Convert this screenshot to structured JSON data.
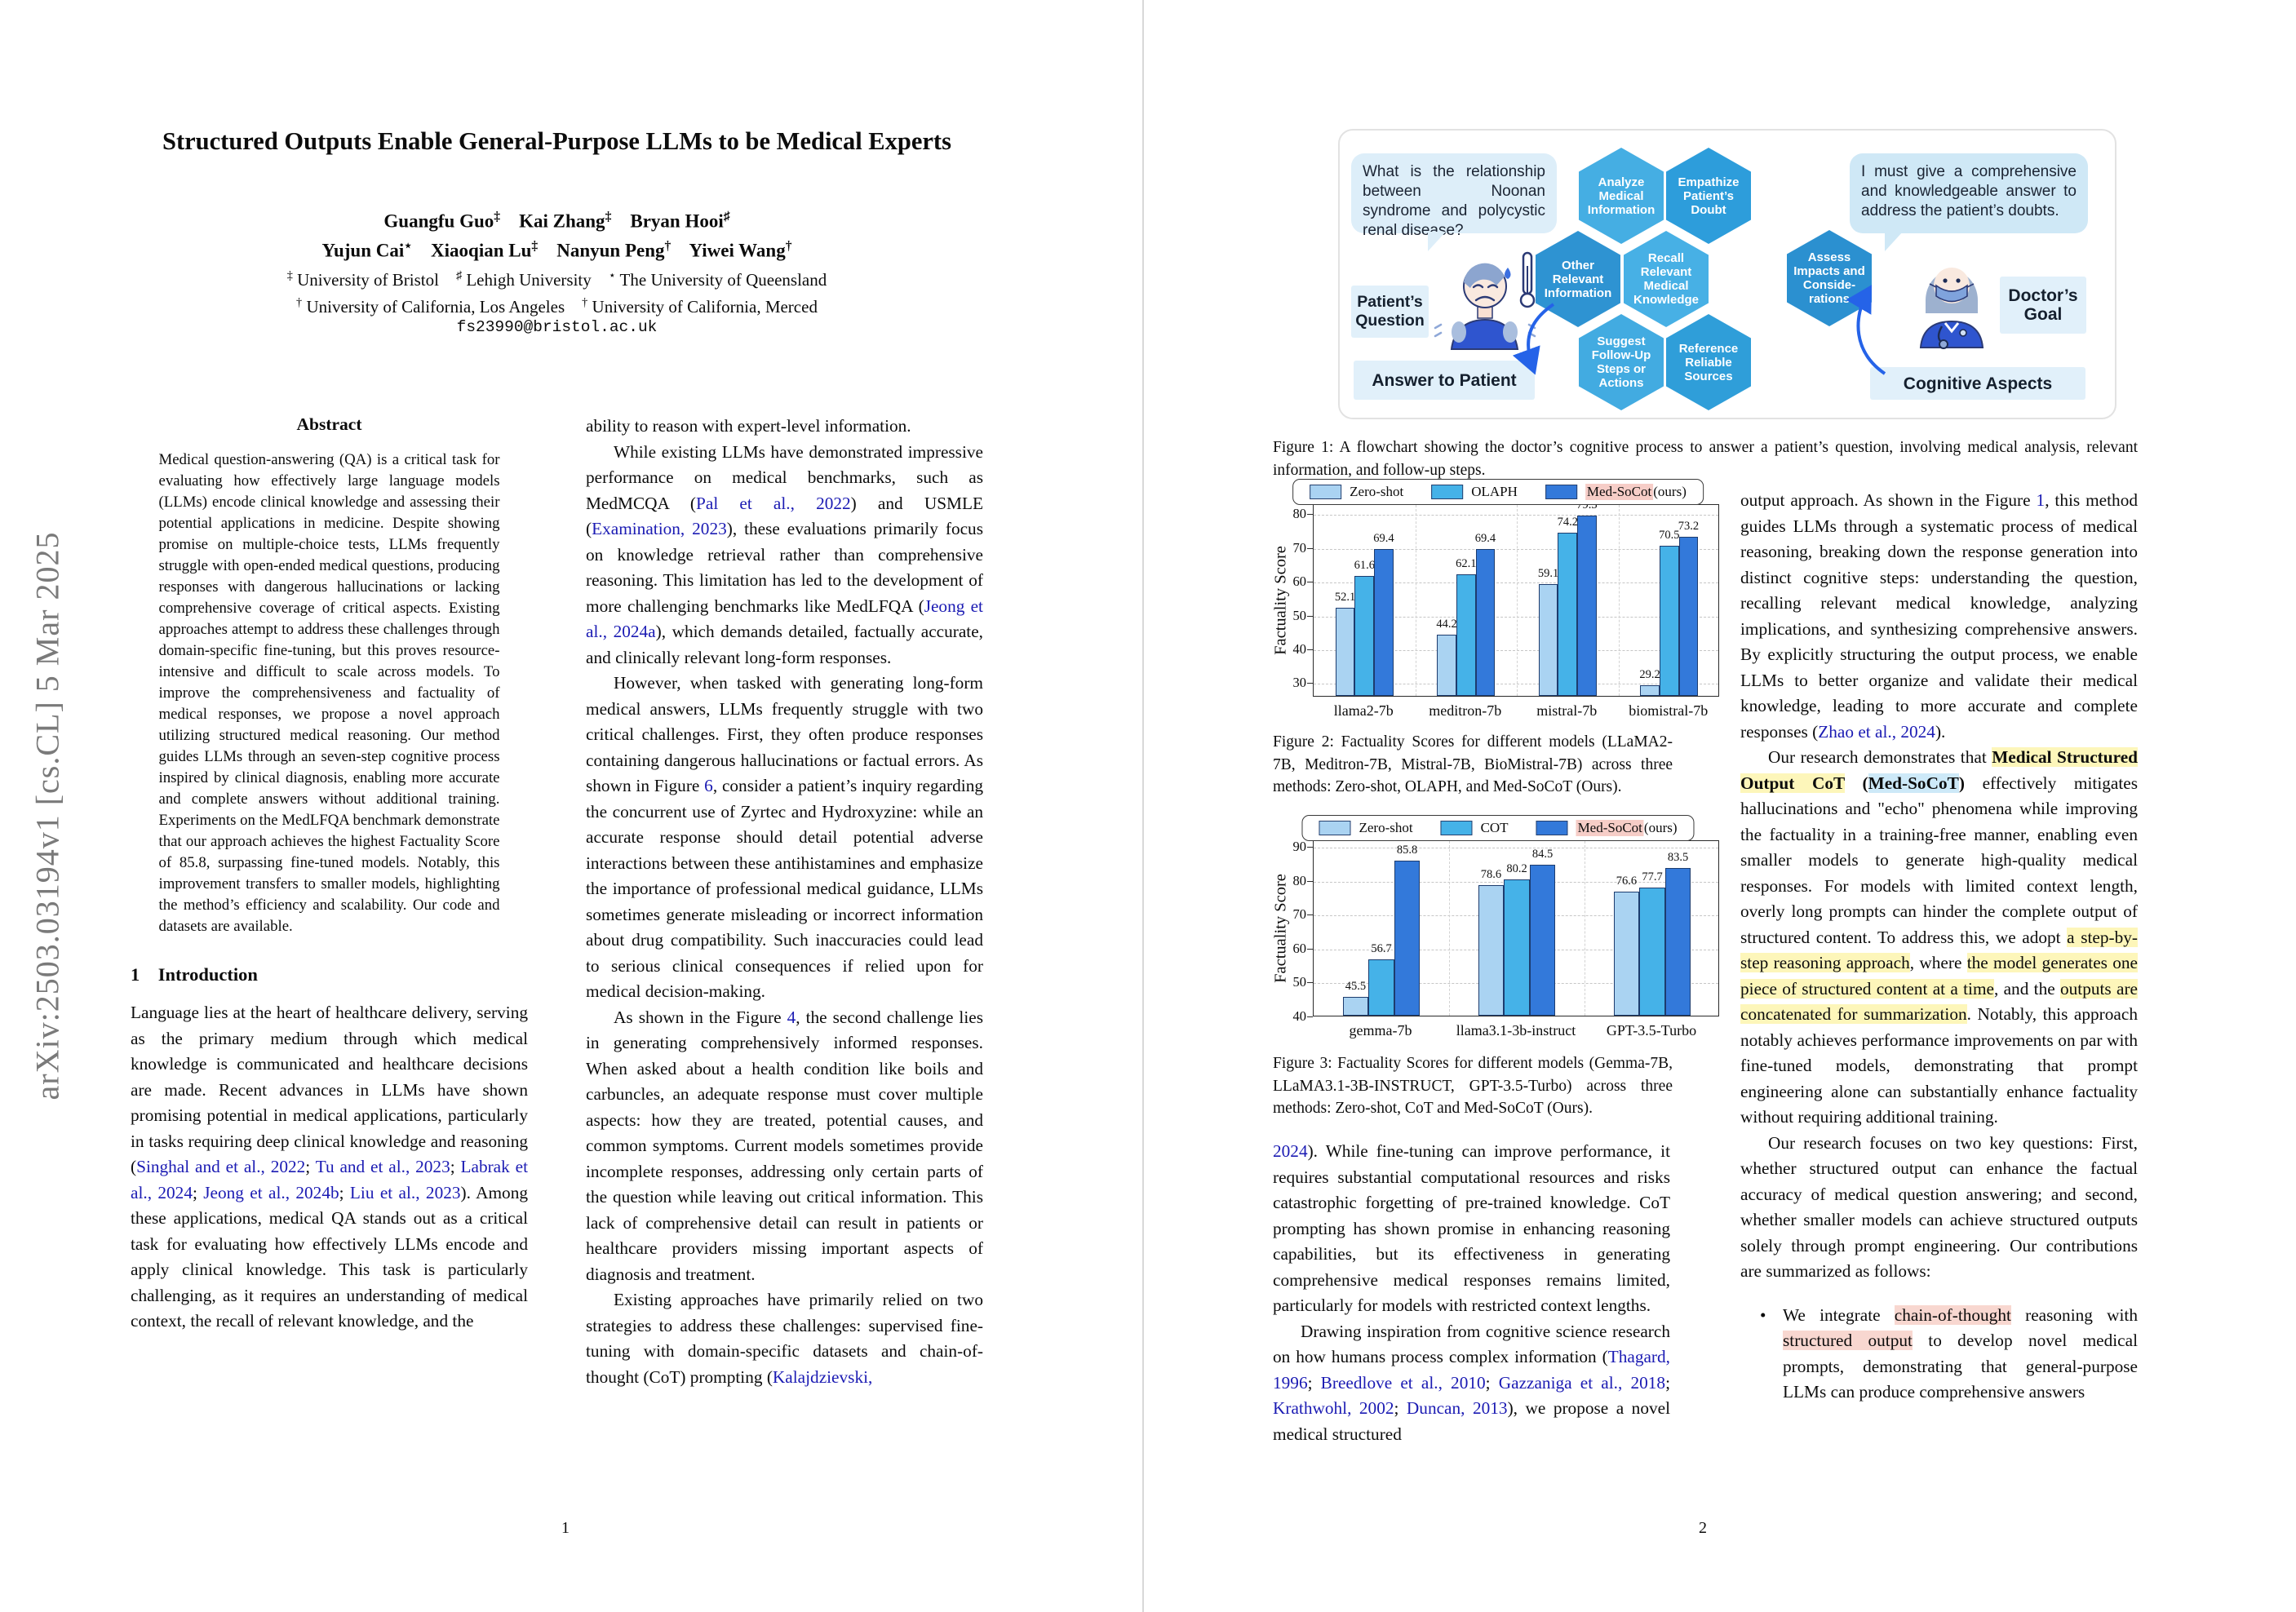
{
  "arxiv_watermark": "arXiv:2503.03194v1  [cs.CL]  5 Mar 2025",
  "paper": {
    "title": "Structured Outputs Enable General-Purpose LLMs to be Medical Experts",
    "authors_line1": [
      {
        "t": "Guangfu Guo"
      },
      {
        "t": "‡",
        "s": "sup"
      },
      {
        "t": "    "
      },
      {
        "t": "Kai Zhang"
      },
      {
        "t": "‡",
        "s": "sup"
      },
      {
        "t": "    "
      },
      {
        "t": "Bryan Hooi"
      },
      {
        "t": "♯",
        "s": "sup"
      }
    ],
    "authors_line2": [
      {
        "t": "Yujun Cai"
      },
      {
        "t": "⋆",
        "s": "sup"
      },
      {
        "t": "    "
      },
      {
        "t": "Xiaoqian Lu"
      },
      {
        "t": "‡",
        "s": "sup"
      },
      {
        "t": "    "
      },
      {
        "t": "Nanyun Peng"
      },
      {
        "t": "†",
        "s": "sup"
      },
      {
        "t": "    "
      },
      {
        "t": "Yiwei Wang"
      },
      {
        "t": "†",
        "s": "sup"
      }
    ],
    "affil_line1": [
      {
        "t": "‡",
        "s": "sup"
      },
      {
        "t": " University of Bristol    "
      },
      {
        "t": "♯",
        "s": "sup"
      },
      {
        "t": " Lehigh University    "
      },
      {
        "t": "⋆",
        "s": "sup"
      },
      {
        "t": " The University of Queensland"
      }
    ],
    "affil_line2": [
      {
        "t": "†",
        "s": "sup"
      },
      {
        "t": " University of California, Los Angeles    "
      },
      {
        "t": "†",
        "s": "sup"
      },
      {
        "t": " University of California, Merced"
      }
    ],
    "email": "fs23990@bristol.ac.uk"
  },
  "abstract": {
    "heading": "Abstract",
    "body": "Medical question-answering (QA) is a critical task for evaluating how effectively large language models (LLMs) encode clinical knowledge and assessing their potential applications in medicine. Despite showing promise on multiple-choice tests, LLMs frequently struggle with open-ended medical questions, producing responses with dangerous hallucinations or lacking comprehensive coverage of critical aspects. Existing approaches attempt to address these challenges through domain-specific fine-tuning, but this proves resource-intensive and difficult to scale across models. To improve the comprehensiveness and factuality of medical responses, we propose a novel approach utilizing structured medical reasoning. Our method guides LLMs through an seven-step cognitive process inspired by clinical diagnosis, enabling more accurate and complete answers without additional training. Experiments on the MedLFQA benchmark demonstrate that our approach achieves the highest Factuality Score of 85.8, surpassing fine-tuned models. Notably, this improvement transfers to smaller models, highlighting the method’s efficiency and scalability. Our code and datasets are available."
  },
  "intro": {
    "heading": "1 Introduction",
    "p1": [
      {
        "t": "Language lies at the heart of healthcare delivery, serving as the primary medium through which medical knowledge is communicated and healthcare decisions are made. Recent advances in LLMs have shown promising potential in medical applications, particularly in tasks requiring deep clinical knowledge and reasoning ("
      },
      {
        "t": "Singhal and et al., 2022",
        "s": "lk"
      },
      {
        "t": "; "
      },
      {
        "t": "Tu and et al., 2023",
        "s": "lk"
      },
      {
        "t": "; "
      },
      {
        "t": "Labrak et al., 2024",
        "s": "lk"
      },
      {
        "t": "; "
      },
      {
        "t": "Jeong et al., 2024b",
        "s": "lk"
      },
      {
        "t": "; "
      },
      {
        "t": "Liu et al., 2023",
        "s": "lk"
      },
      {
        "t": ").  Among these applications, medical QA stands out as a critical task for evaluating how effectively LLMs encode and apply clinical knowledge. This task is particularly challenging, as it requires an understanding of medical context, the recall of relevant knowledge, and the"
      }
    ]
  },
  "col2": {
    "p1": [
      {
        "t": "ability to reason with expert-level information."
      }
    ],
    "p2": [
      {
        "t": "While existing LLMs have demonstrated impressive performance on medical benchmarks, such as MedMCQA ("
      },
      {
        "t": "Pal et al., 2022",
        "s": "lk"
      },
      {
        "t": ") and USMLE ("
      },
      {
        "t": "Examination, 2023",
        "s": "lk"
      },
      {
        "t": "), these evaluations primarily focus on knowledge retrieval rather than comprehensive reasoning. This limitation has led to the development of more challenging benchmarks like MedLFQA ("
      },
      {
        "t": "Jeong et al., 2024a",
        "s": "lk"
      },
      {
        "t": "), which demands detailed, factually accurate, and clinically relevant long-form responses."
      }
    ],
    "p3": [
      {
        "t": "However, when tasked with generating long-form medical answers, LLMs frequently struggle with two critical challenges. First, they often produce responses containing dangerous hallucinations or factual errors. As shown in Figure "
      },
      {
        "t": "6",
        "s": "lk"
      },
      {
        "t": ", consider a patient’s inquiry regarding the concurrent use of Zyrtec and Hydroxyzine: while an accurate response should detail potential adverse interactions between these antihistamines and emphasize the importance of professional medical guidance, LLMs sometimes generate misleading or incorrect information about drug compatibility. Such inaccuracies could lead to serious clinical consequences if relied upon for medical decision-making."
      }
    ],
    "p4": [
      {
        "t": "As shown in the Figure "
      },
      {
        "t": "4",
        "s": "lk"
      },
      {
        "t": ", the second challenge lies in generating comprehensively informed responses. When asked about a health condition like boils and carbuncles, an adequate response must cover multiple aspects: how they are treated, potential causes, and common symptoms. Current models sometimes provide incomplete responses, addressing only certain parts of the question while leaving out critical information. This lack of comprehensive detail can result in patients or healthcare providers missing important aspects of diagnosis and treatment."
      }
    ],
    "p5": [
      {
        "t": "Existing approaches have primarily relied on two strategies to address these challenges: supervised fine-tuning with domain-specific datasets and chain-of-thought (CoT) prompting ("
      },
      {
        "t": "Kalajdzievski,",
        "s": "lk"
      }
    ]
  },
  "figure1": {
    "patient_bubble": "What is the relationship between Noonan syndrome and polycystic renal disease?",
    "patient_label": "Patient’s Question",
    "answer_label": "Answer to Patient",
    "doctor_bubble": "I must give a comprehensive and knowledgeable answer to address the patient’s doubts.",
    "doctor_label": "Doctor’s Goal",
    "cognitive_label": "Cognitive Aspects",
    "steps": [
      "Analyze Medical Information",
      "Empathize Patient’s Doubt",
      "Other Relevant Information",
      "Recall Relevant Medical Knowledge",
      "Assess Impacts and Conside-rations",
      "Suggest Follow-Up Steps or Actions",
      "Reference Reliable Sources"
    ],
    "hex_colors": [
      "#45aee3",
      "#2d9ddb",
      "#2e93d2",
      "#47b0e5",
      "#2b90d0",
      "#42abe1",
      "#2f9ed9"
    ],
    "arrow_color": "#2563e8"
  },
  "captions": {
    "fig1": "Figure 1: A flowchart showing the doctor’s cognitive process to answer a patient’s question, involving medical analysis, relevant information, and follow-up steps.",
    "fig2": "Figure 2: Factuality Scores for different models (LLaMA2-7B, Meditron-7B, Mistral-7B, BioMistral-7B) across three methods: Zero-shot, OLAPH, and Med-SoCoT (Ours).",
    "fig3": "Figure 3: Factuality Scores for different models (Gemma-7B, LLaMA3.1-3B-INSTRUCT, GPT-3.5-Turbo) across three methods: Zero-shot, CoT and Med-SoCoT (Ours)."
  },
  "chart_data": [
    {
      "type": "bar",
      "title": "",
      "xlabel": "",
      "ylabel": "Factuality Score",
      "categories": [
        "llama2-7b",
        "meditron-7b",
        "mistral-7b",
        "biomistral-7b"
      ],
      "series": [
        {
          "name": "Zero-shot",
          "values": [
            52.1,
            44.2,
            59.1,
            29.2
          ],
          "color": "#aad3f2"
        },
        {
          "name": "OLAPH",
          "values": [
            61.6,
            62.1,
            74.2,
            70.5
          ],
          "color": "#45b2e8"
        },
        {
          "name": "Med-SoCot",
          "suffix": " (ours)",
          "highlight": true,
          "values": [
            69.4,
            69.4,
            79.3,
            73.2
          ],
          "color": "#3379da"
        }
      ],
      "ylim": [
        26,
        83
      ],
      "yticks": [
        30,
        40,
        50,
        60,
        70,
        80
      ],
      "grid": true,
      "legend_position": "top"
    },
    {
      "type": "bar",
      "title": "",
      "xlabel": "",
      "ylabel": "Factuality Score",
      "categories": [
        "gemma-7b",
        "llama3.1-3b-instruct",
        "GPT-3.5-Turbo"
      ],
      "series": [
        {
          "name": "Zero-shot",
          "values": [
            45.5,
            78.6,
            76.6
          ],
          "color": "#aad3f2"
        },
        {
          "name": "COT",
          "values": [
            56.7,
            80.2,
            77.7
          ],
          "color": "#45b2e8"
        },
        {
          "name": "Med-SoCot",
          "suffix": " (ours)",
          "highlight": true,
          "values": [
            85.8,
            84.5,
            83.5
          ],
          "color": "#3379da"
        }
      ],
      "ylim": [
        40,
        92
      ],
      "yticks": [
        40,
        50,
        60,
        70,
        80,
        90
      ],
      "grid": true,
      "legend_position": "top"
    }
  ],
  "page2": {
    "left_pA": [
      {
        "t": "2024",
        "s": "lk"
      },
      {
        "t": "). While fine-tuning can improve performance, it requires substantial computational resources and risks catastrophic forgetting of pre-trained knowledge. CoT prompting has shown promise in enhancing reasoning capabilities, but its effectiveness in generating comprehensive medical responses remains limited, particularly for models with restricted context lengths."
      }
    ],
    "left_pB": [
      {
        "t": "Drawing inspiration from cognitive science research on how humans process complex information ("
      },
      {
        "t": "Thagard, 1996",
        "s": "lk"
      },
      {
        "t": "; "
      },
      {
        "t": "Breedlove et al., 2010",
        "s": "lk"
      },
      {
        "t": "; "
      },
      {
        "t": "Gazzaniga et al., 2018",
        "s": "lk"
      },
      {
        "t": "; "
      },
      {
        "t": "Krathwohl, 2002",
        "s": "lk"
      },
      {
        "t": "; "
      },
      {
        "t": "Duncan, 2013",
        "s": "lk"
      },
      {
        "t": "), we propose a novel medical structured"
      }
    ],
    "right_p1": [
      {
        "t": "output approach.  As shown in the Figure "
      },
      {
        "t": "1",
        "s": "lk"
      },
      {
        "t": ", this method guides LLMs through a systematic process of medical reasoning, breaking down the response generation into distinct cognitive steps: understanding the question, recalling relevant medical knowledge, analyzing implications, and synthesizing comprehensive answers. By explicitly structuring the output process, we enable LLMs to better organize and validate their medical knowledge, leading to more accurate and complete responses ("
      },
      {
        "t": "Zhao et al., 2024",
        "s": "lk"
      },
      {
        "t": ")."
      }
    ],
    "right_p2": [
      {
        "t": "Our research demonstrates that "
      },
      {
        "t": "Medical Structured Output CoT",
        "s": "b hy"
      },
      {
        "t": " (",
        "s": "b"
      },
      {
        "t": "Med-SoCoT",
        "s": "b hb"
      },
      {
        "t": ")",
        "s": "b"
      },
      {
        "t": " effectively mitigates hallucinations and \"echo\" phenomena while improving the factuality in a training-free manner, enabling even smaller models to generate high-quality medical responses. For models with limited context length, overly long prompts can hinder the complete output of structured content. To address this, we adopt "
      },
      {
        "t": "a step-by-step reasoning approach",
        "s": "hy"
      },
      {
        "t": ", where "
      },
      {
        "t": "the model generates one piece of structured content at a time",
        "s": "hy"
      },
      {
        "t": ", and the "
      },
      {
        "t": "outputs are concatenated for summarization",
        "s": "hy"
      },
      {
        "t": ". Notably, this approach notably achieves performance improvements on par with fine-tuned models, demonstrating that prompt engineering alone can substantially enhance factuality without requiring additional training."
      }
    ],
    "right_p3": [
      {
        "t": "Our research focuses on two key questions: First, whether structured output can enhance the factual accuracy of medical question answering; and second, whether smaller models can achieve structured outputs solely through prompt engineering.  Our contributions are summarized as follows:"
      }
    ],
    "bullet_marker": "•",
    "bullet1": [
      {
        "t": "We integrate "
      },
      {
        "t": "chain-of-thought",
        "s": "hp"
      },
      {
        "t": " reasoning with "
      },
      {
        "t": "structured output",
        "s": "hp"
      },
      {
        "t": " to develop novel medical prompts, demonstrating that general-purpose LLMs can produce comprehensive answers"
      }
    ]
  },
  "page_numbers": {
    "p1": "1",
    "p2": "2"
  }
}
